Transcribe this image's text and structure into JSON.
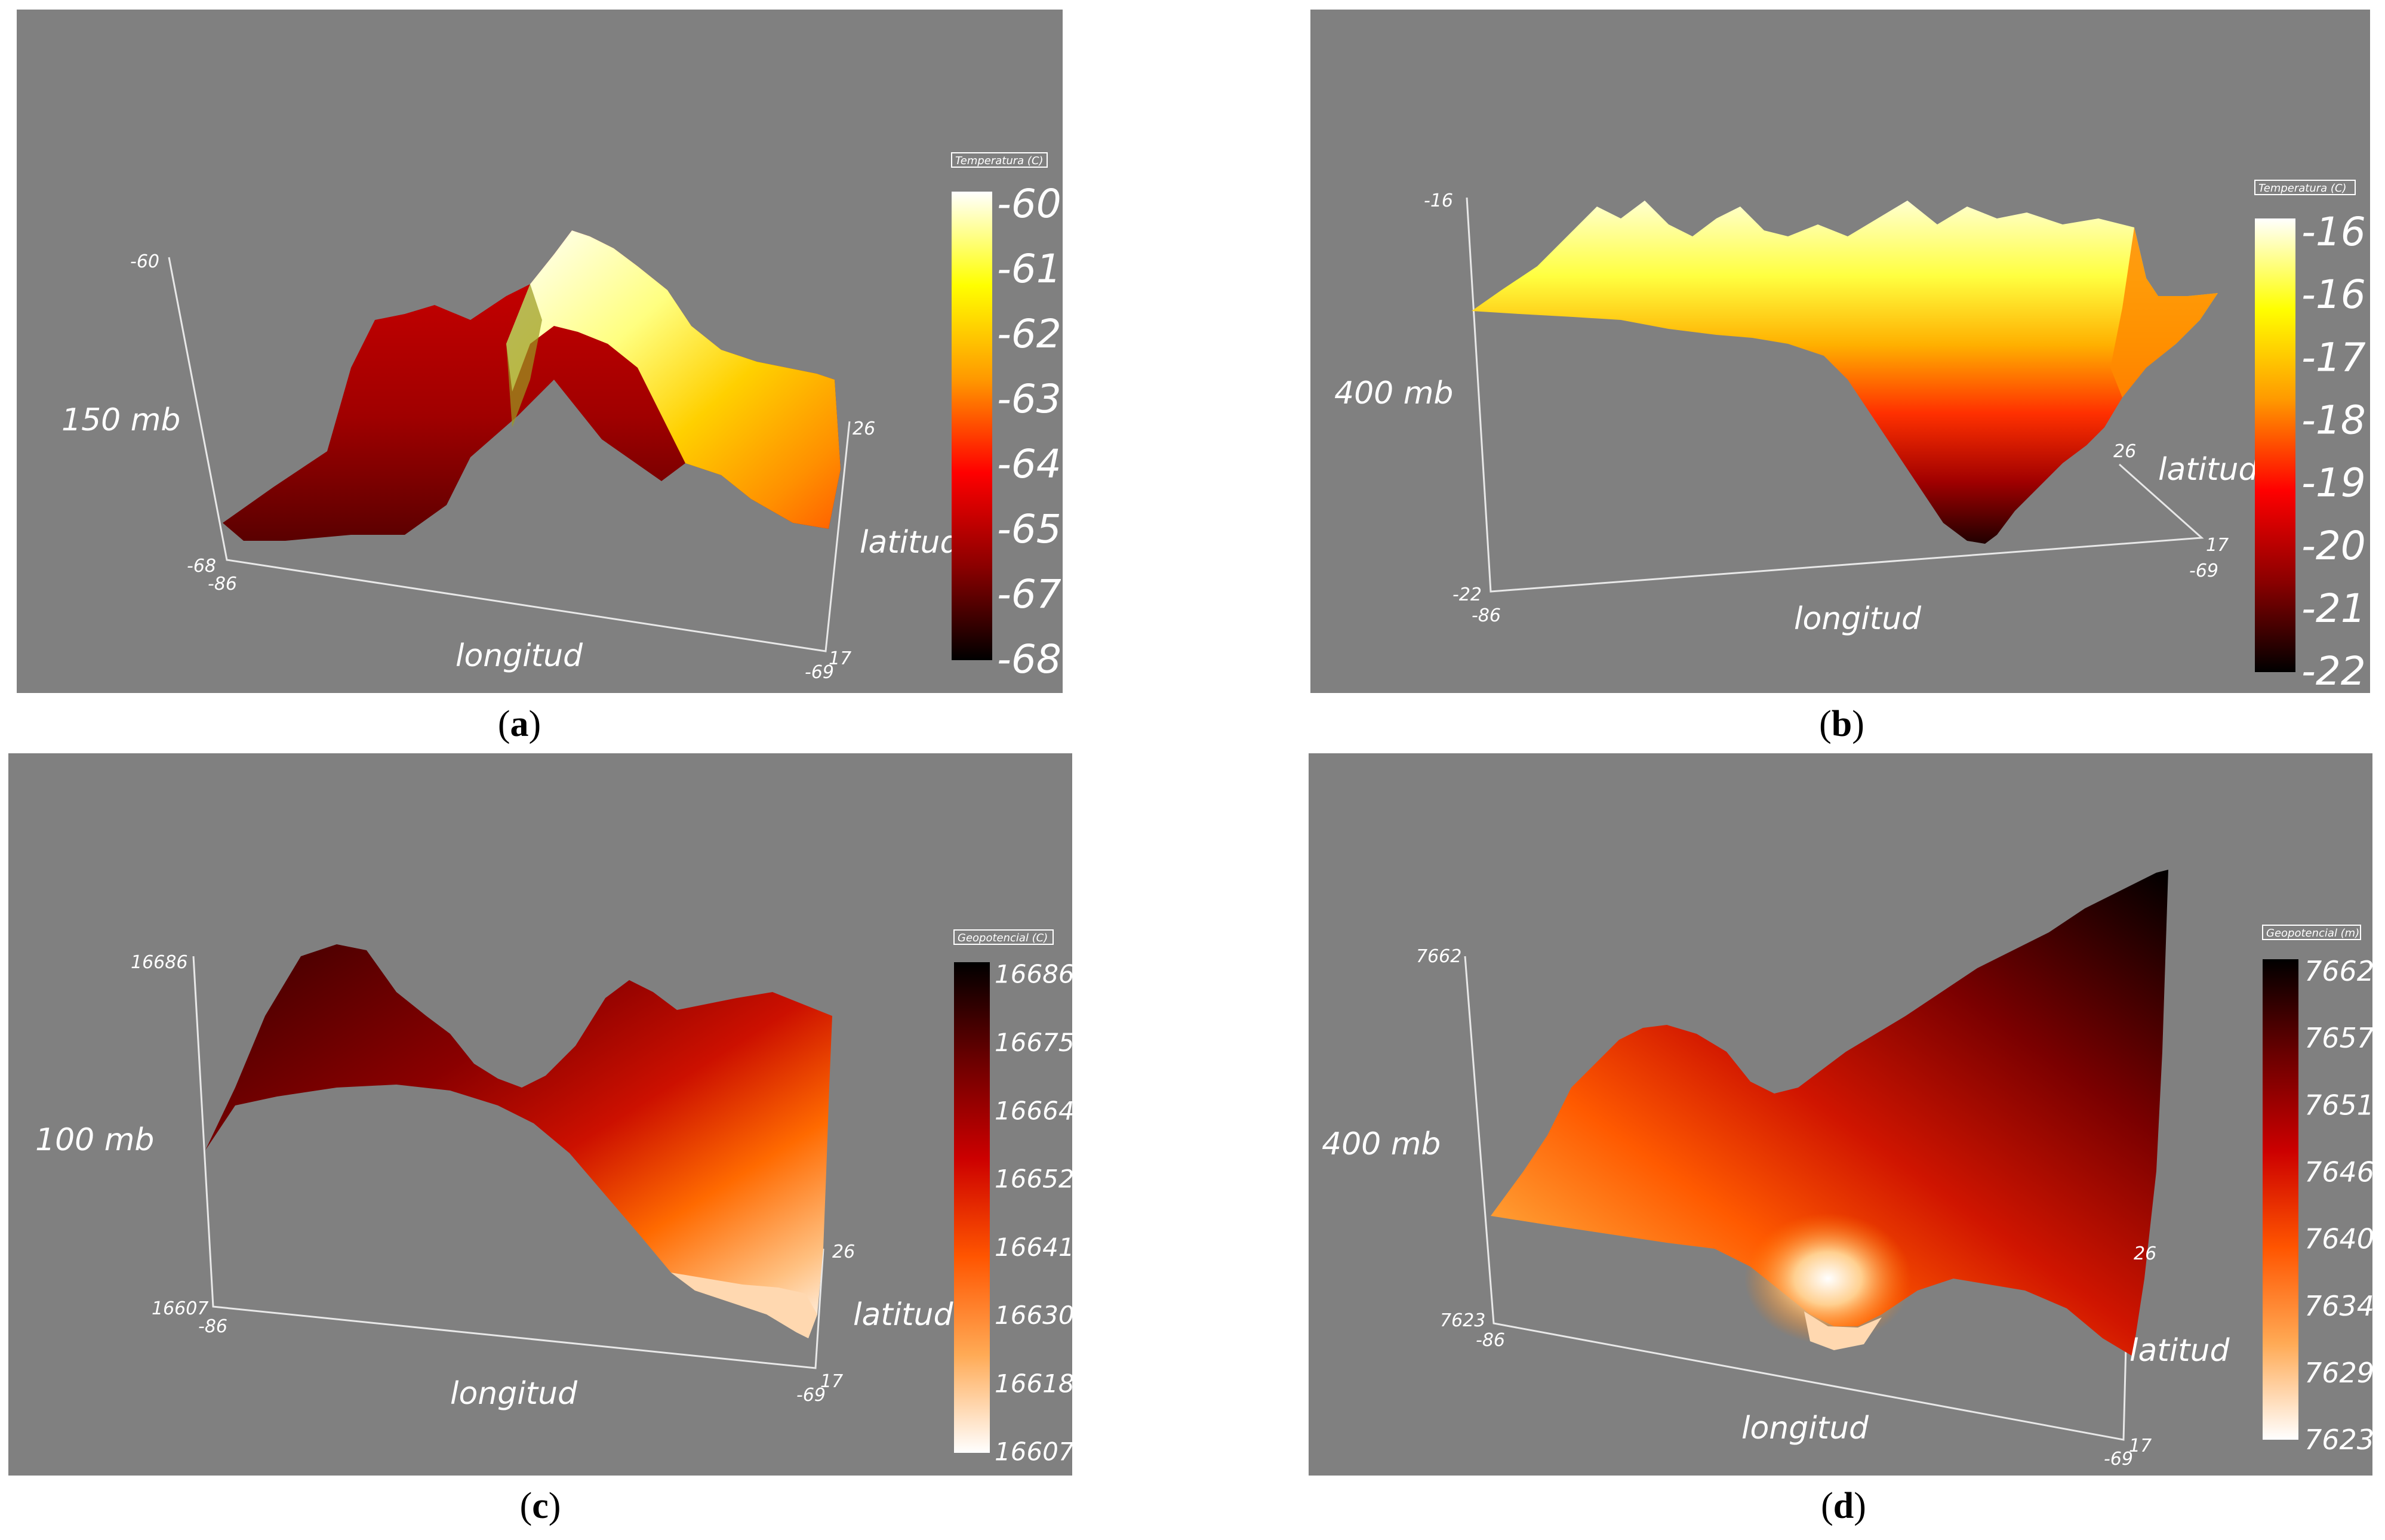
{
  "chart_data": [
    {
      "type": "3d-surface",
      "panel_label": "a",
      "level_label": "150 mb",
      "xlabel": "longitud",
      "ylabel": "latitud",
      "zlim": [
        -68,
        -60
      ],
      "x_ticks": [
        "-86",
        "-69"
      ],
      "y_ticks": [
        "17",
        "26"
      ],
      "z_ticks": [
        "-68",
        "-60"
      ],
      "colorbar": {
        "title": "Temperatura (C)",
        "ticks": [
          "-60",
          "-61",
          "-62",
          "-63",
          "-64",
          "-65",
          "-67",
          "-68"
        ],
        "colors": [
          "#ffffff",
          "#ffff00",
          "#ff9900",
          "#ff0000",
          "#8b0000",
          "#000000"
        ]
      }
    },
    {
      "type": "3d-surface",
      "panel_label": "b",
      "level_label": "400 mb",
      "xlabel": "longitud",
      "ylabel": "latitud",
      "zlim": [
        -22,
        -16
      ],
      "x_ticks": [
        "-86",
        "-69"
      ],
      "y_ticks": [
        "17",
        "26"
      ],
      "z_ticks": [
        "-22",
        "-16"
      ],
      "colorbar": {
        "title": "Temperatura (C)",
        "ticks": [
          "-16",
          "-16",
          "-17",
          "-18",
          "-19",
          "-20",
          "-21",
          "-22"
        ],
        "colors": [
          "#ffffff",
          "#ffff00",
          "#ff9900",
          "#ff0000",
          "#8b0000",
          "#000000"
        ]
      }
    },
    {
      "type": "3d-surface",
      "panel_label": "c",
      "level_label": "100 mb",
      "xlabel": "longitud",
      "ylabel": "latitud",
      "zlim": [
        16607,
        16686
      ],
      "x_ticks": [
        "-86",
        "-69"
      ],
      "y_ticks": [
        "17",
        "26"
      ],
      "z_ticks": [
        "16607",
        "16686"
      ],
      "colorbar": {
        "title": "Geopotencial (C)",
        "ticks": [
          "16686",
          "16675",
          "16664",
          "16652",
          "16641",
          "16630",
          "16618",
          "16607"
        ],
        "colors": [
          "#000000",
          "#6b0000",
          "#cc0000",
          "#ff5500",
          "#ffaa55",
          "#ffffff"
        ]
      }
    },
    {
      "type": "3d-surface",
      "panel_label": "d",
      "level_label": "400 mb",
      "xlabel": "longitud",
      "ylabel": "latitud",
      "zlim": [
        7623,
        7662
      ],
      "x_ticks": [
        "-86",
        "-69"
      ],
      "y_ticks": [
        "17",
        "26"
      ],
      "z_ticks": [
        "7623",
        "7662"
      ],
      "colorbar": {
        "title": "Geopotencial (m)",
        "ticks": [
          "7662",
          "7657",
          "7651",
          "7646",
          "7640",
          "7634",
          "7629",
          "7623"
        ],
        "colors": [
          "#000000",
          "#6b0000",
          "#cc0000",
          "#ff5500",
          "#ffaa55",
          "#ffffff"
        ]
      }
    }
  ]
}
